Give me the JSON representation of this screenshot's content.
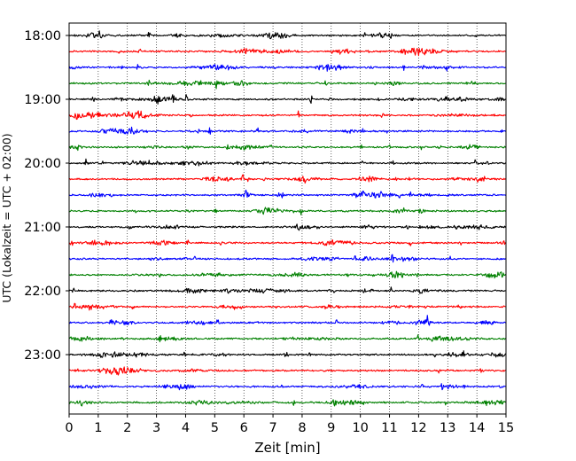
{
  "chart_data": {
    "type": "line",
    "title": "",
    "xlabel": "Zeit  [min]",
    "ylabel": "UTC (Lokalzeit = UTC + 02:00)",
    "xlim": [
      0,
      15
    ],
    "x_ticks": [
      "0",
      "1",
      "2",
      "3",
      "4",
      "5",
      "6",
      "7",
      "8",
      "9",
      "10",
      "11",
      "12",
      "13",
      "14",
      "15"
    ],
    "y_ticks": [
      "18:00",
      "19:00",
      "20:00",
      "21:00",
      "22:00",
      "23:00"
    ],
    "y_direction": "time increases downward",
    "trace_interval_min": 15,
    "grid": "vertical dotted lines at each minute",
    "legend": "none",
    "color_cycle": [
      "#000000",
      "#ff0000",
      "#0000ff",
      "#008000"
    ],
    "series": [
      {
        "start": "18:00",
        "color": "#000000"
      },
      {
        "start": "18:15",
        "color": "#ff0000"
      },
      {
        "start": "18:30",
        "color": "#0000ff"
      },
      {
        "start": "18:45",
        "color": "#008000"
      },
      {
        "start": "19:00",
        "color": "#000000"
      },
      {
        "start": "19:15",
        "color": "#ff0000"
      },
      {
        "start": "19:30",
        "color": "#0000ff"
      },
      {
        "start": "19:45",
        "color": "#008000"
      },
      {
        "start": "20:00",
        "color": "#000000"
      },
      {
        "start": "20:15",
        "color": "#ff0000"
      },
      {
        "start": "20:30",
        "color": "#0000ff"
      },
      {
        "start": "20:45",
        "color": "#008000"
      },
      {
        "start": "21:00",
        "color": "#000000"
      },
      {
        "start": "21:15",
        "color": "#ff0000"
      },
      {
        "start": "21:30",
        "color": "#0000ff"
      },
      {
        "start": "21:45",
        "color": "#008000"
      },
      {
        "start": "22:00",
        "color": "#000000"
      },
      {
        "start": "22:15",
        "color": "#ff0000"
      },
      {
        "start": "22:30",
        "color": "#0000ff"
      },
      {
        "start": "22:45",
        "color": "#008000"
      },
      {
        "start": "23:00",
        "color": "#000000"
      },
      {
        "start": "23:15",
        "color": "#ff0000"
      },
      {
        "start": "23:30",
        "color": "#0000ff"
      },
      {
        "start": "23:45",
        "color": "#008000"
      }
    ]
  }
}
